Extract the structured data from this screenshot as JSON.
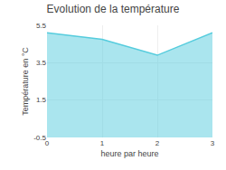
{
  "chart_data": {
    "type": "area",
    "title": "Evolution de la température",
    "xlabel": "heure par heure",
    "ylabel": "Température en °C",
    "x": [
      0,
      1,
      2,
      3
    ],
    "values": [
      5.1,
      4.75,
      3.9,
      5.1
    ],
    "xlim": [
      0,
      3
    ],
    "ylim": [
      -0.5,
      5.5
    ],
    "xticks": [
      0,
      1,
      2,
      3
    ],
    "yticks": [
      -0.5,
      1.5,
      3.5,
      5.5
    ],
    "color": "#55ccdd",
    "grid": true
  }
}
